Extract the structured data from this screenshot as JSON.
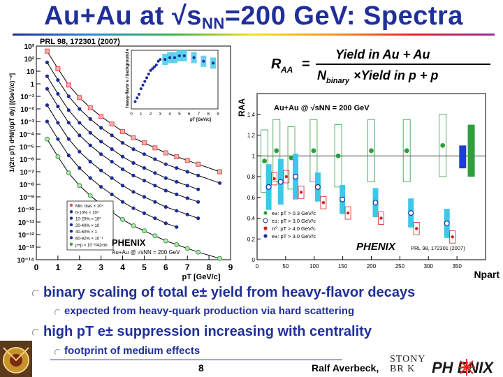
{
  "slide": {
    "title_prefix": "Au+Au at √s",
    "title_sub": "NN",
    "title_suffix": "=200 GeV: Spectra",
    "reference": "PRL 98, 172301 (2007)",
    "page_number": "8",
    "author": "Ralf Averbeck,",
    "logo_stonybrook_top": "STONY",
    "logo_stonybrook_bottom": "BR  K",
    "logo_phenix": "PH   ENIX"
  },
  "bullets": [
    {
      "level": 1,
      "text": "binary scaling of total e± yield from heavy-flavor decays"
    },
    {
      "level": 2,
      "text": "expected from heavy-quark production via hard scattering"
    },
    {
      "level": 1,
      "text": "high pT e± suppression increasing with centrality"
    },
    {
      "level": 2,
      "text": "footprint of medium effects"
    }
  ],
  "chart_data": [
    {
      "type": "scatter",
      "name": "spectra",
      "xlabel": "pT [GeV/c]",
      "ylabel": "1/(2π pT) d²N/(dpT dy) [(GeV/c)⁻²]",
      "xlim": [
        0,
        9
      ],
      "ylim_exponent": [
        -14,
        3
      ],
      "x_ticks": [
        "0",
        "1",
        "2",
        "3",
        "4",
        "5",
        "6",
        "7",
        "8",
        "9"
      ],
      "y_ticks": [
        "10³",
        "10²",
        "10",
        "1",
        "10⁻¹",
        "10⁻²",
        "10⁻³",
        "10⁻⁴",
        "10⁻⁵",
        "10⁻⁶",
        "10⁻⁷",
        "10⁻⁸",
        "10⁻⁹",
        "10⁻¹⁰",
        "10⁻¹¹",
        "10⁻¹²",
        "10⁻¹³",
        "10⁻¹⁴"
      ],
      "legend": [
        "Min. bias × 10⁴",
        "0-10% × 10³",
        "10-20% × 10²",
        "20-40% × 10",
        "40-60% × 1",
        "60-92% × 10⁻¹",
        "p+p × 10⁻²/42mb"
      ],
      "series_colors": [
        "#e05050",
        "#1c2c9a",
        "#1c2c9a",
        "#1c2c9a",
        "#1c2c9a",
        "#1c2c9a",
        "#3aa040"
      ],
      "series": [
        {
          "name": "Min. bias × 10⁴",
          "x": [
            0.5,
            1,
            1.5,
            2,
            2.5,
            3,
            3.5,
            4,
            4.5,
            5,
            5.5,
            6,
            6.5,
            7,
            7.5,
            8.5
          ],
          "y_exp": [
            2.6,
            1.2,
            -0.1,
            -1.1,
            -1.9,
            -2.6,
            -3.2,
            -3.8,
            -4.3,
            -4.7,
            -5.1,
            -5.5,
            -5.8,
            -6.1,
            -6.4,
            -7.0
          ]
        },
        {
          "name": "0-10% × 10³",
          "x": [
            0.5,
            1,
            1.5,
            2,
            2.5,
            3,
            3.5,
            4,
            4.5,
            5,
            5.5,
            6,
            6.5,
            7,
            7.5,
            8.5
          ],
          "y_exp": [
            1.7,
            0.3,
            -1.0,
            -2.0,
            -2.8,
            -3.5,
            -4.1,
            -4.7,
            -5.2,
            -5.6,
            -6.0,
            -6.4,
            -6.7,
            -7.0,
            -7.3,
            -7.9
          ]
        },
        {
          "name": "10-20% × 10²",
          "x": [
            0.5,
            1,
            1.5,
            2,
            2.5,
            3,
            3.5,
            4,
            4.5,
            5,
            5.5,
            6,
            6.5,
            7,
            7.5
          ],
          "y_exp": [
            0.6,
            -0.8,
            -2.1,
            -3.1,
            -3.9,
            -4.6,
            -5.2,
            -5.8,
            -6.3,
            -6.7,
            -7.1,
            -7.5,
            -7.8,
            -8.1,
            -8.4
          ]
        },
        {
          "name": "20-40% × 10",
          "x": [
            0.5,
            1,
            1.5,
            2,
            2.5,
            3,
            3.5,
            4,
            4.5,
            5,
            5.5,
            6,
            6.5,
            7,
            7.5
          ],
          "y_exp": [
            -0.4,
            -1.8,
            -3.1,
            -4.1,
            -4.9,
            -5.6,
            -6.2,
            -6.8,
            -7.3,
            -7.7,
            -8.1,
            -8.5,
            -8.8,
            -9.1,
            -9.4
          ]
        },
        {
          "name": "40-60% × 1",
          "x": [
            0.5,
            1,
            1.5,
            2,
            2.5,
            3,
            3.5,
            4,
            4.5,
            5,
            5.5,
            6,
            6.5,
            7,
            7.5
          ],
          "y_exp": [
            -1.7,
            -3.1,
            -4.4,
            -5.4,
            -6.2,
            -6.9,
            -7.5,
            -8.1,
            -8.6,
            -9.0,
            -9.4,
            -9.8,
            -10.1,
            -10.4,
            -10.7
          ]
        },
        {
          "name": "60-92% × 10⁻¹",
          "x": [
            0.5,
            1,
            1.5,
            2,
            2.5,
            3,
            3.5,
            4,
            4.5,
            5,
            5.5,
            6,
            6.5
          ],
          "y_exp": [
            -3.0,
            -4.4,
            -5.7,
            -6.7,
            -7.5,
            -8.2,
            -8.8,
            -9.4,
            -9.9,
            -10.3,
            -10.7,
            -11.1,
            -11.4
          ]
        },
        {
          "name": "p+p × 10⁻²/42mb",
          "x": [
            0.5,
            1,
            1.5,
            2,
            2.5,
            3,
            3.5,
            4,
            4.5,
            5,
            5.5,
            6,
            6.5,
            7,
            7.5,
            8.5
          ],
          "y_exp": [
            -4.4,
            -5.8,
            -7.1,
            -8.1,
            -8.9,
            -9.6,
            -10.2,
            -10.8,
            -11.3,
            -11.7,
            -12.1,
            -12.5,
            -12.8,
            -13.1,
            -13.4,
            -13.9
          ]
        }
      ],
      "inset": {
        "xlim": [
          0,
          9
        ],
        "x_ticks": [
          "0",
          "1",
          "2",
          "3",
          "4",
          "5",
          "6",
          "7",
          "8",
          "9"
        ],
        "ylabel": "heavy-flavor e / background e",
        "xlabel": "pT [GeV/c]",
        "x": [
          0.4,
          0.6,
          0.8,
          1.0,
          1.2,
          1.4,
          1.6,
          1.8,
          2.0,
          2.2,
          2.4,
          2.6,
          2.8,
          3.0,
          3.5,
          4.0,
          4.5,
          5.0,
          5.5,
          6.5,
          7.5,
          8.5
        ],
        "y": [
          0.2,
          0.3,
          0.4,
          0.55,
          0.65,
          0.75,
          0.85,
          0.95,
          1.05,
          1.1,
          1.15,
          1.2,
          1.3,
          1.35,
          1.35,
          1.4,
          1.4,
          1.45,
          1.45,
          1.4,
          1.3,
          1.25
        ]
      },
      "phenix_label": "PHENIX",
      "energy_label": "Au+Au @ √sNN = 200 GeV"
    },
    {
      "type": "scatter",
      "name": "raa",
      "formula_left": "R",
      "formula_sub": "AA",
      "formula_equals": "=",
      "formula_numerator": "Yield  in  Au + Au",
      "formula_denominator_n": "N",
      "formula_denominator_sub": "binary",
      "formula_denominator_rest": "×Yield  in  p + p",
      "ylabel": "RAA",
      "xlabel": "Npart",
      "xlim": [
        0,
        400
      ],
      "ylim": [
        0,
        1.6
      ],
      "x_ticks": [
        "0",
        "50",
        "100",
        "150",
        "200",
        "250",
        "300",
        "350"
      ],
      "y_ticks": [
        "0",
        "0.2",
        "0.4",
        "0.6",
        "0.8",
        "1",
        "1.2",
        "1.4"
      ],
      "header": "Au+Au @ √sNN = 200 GeV",
      "reference": "PRL 98, 172301 (2007)",
      "legend": [
        "e±: pT > 0.3 GeV/c",
        "e±: pT > 3.0 GeV/c",
        "π⁰: pT > 4.0 GeV/c",
        "e±: pT > 3.0 GeV/c",
        "e±: pT > 4.0 GeV/c"
      ],
      "series": [
        {
          "name": "e±: pT > 0.3 GeV/c",
          "color": "#2e9e3e",
          "x": [
            13,
            34,
            60,
            99,
            142,
            200,
            262,
            325
          ],
          "y": [
            0.95,
            1.05,
            0.98,
            1.05,
            1.0,
            1.05,
            1.05,
            1.1
          ]
        },
        {
          "name": "e±: pT > 3.0 GeV/c",
          "color": "#1c2c9a",
          "x": [
            13,
            34,
            60,
            99,
            142,
            200,
            262,
            325
          ],
          "y": [
            0.7,
            0.75,
            0.8,
            0.7,
            0.58,
            0.55,
            0.45,
            0.35
          ]
        },
        {
          "name": "e±: pT > 4.0 GeV/c",
          "color": "#d02020",
          "x": [
            13,
            34,
            60,
            99,
            142,
            200,
            262,
            325
          ],
          "y": [
            0.78,
            0.8,
            0.65,
            0.55,
            0.45,
            0.4,
            0.3,
            0.22
          ]
        }
      ],
      "norm_boxes": [
        {
          "name": "green",
          "color": "#2e9e3e",
          "x": 375,
          "y_low": 0.8,
          "y_high": 1.3
        },
        {
          "name": "blue",
          "color": "#1c3fd0",
          "x": 360,
          "y_low": 0.88,
          "y_high": 1.1
        }
      ]
    }
  ]
}
